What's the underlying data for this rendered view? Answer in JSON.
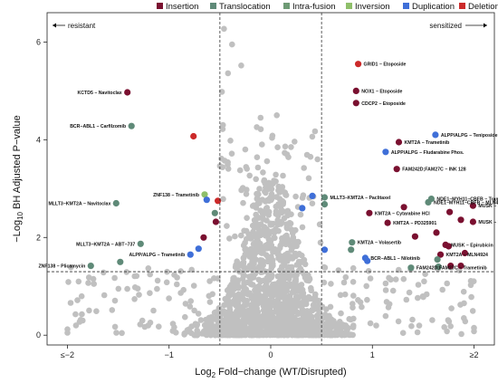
{
  "chart_data": {
    "type": "scatter",
    "x_label_prefix": "Log",
    "x_label_sub": "2",
    "x_label_rest": " Fold−change (WT/Disrupted)",
    "y_label_prefix": "−Log",
    "y_label_sub": "10",
    "y_label_rest": " BH Adjusted P−value",
    "xlim": [
      -2.2,
      2.2
    ],
    "ylim": [
      -0.2,
      6.6
    ],
    "x_ticks": [
      {
        "value": -2,
        "label": "≤−2"
      },
      {
        "value": -1,
        "label": "−1"
      },
      {
        "value": 0,
        "label": "0"
      },
      {
        "value": 1,
        "label": "1"
      },
      {
        "value": 2,
        "label": "≥2"
      }
    ],
    "y_ticks": [
      {
        "value": 0,
        "label": "0"
      },
      {
        "value": 2,
        "label": "2"
      },
      {
        "value": 4,
        "label": "4"
      },
      {
        "value": 6,
        "label": "6"
      }
    ],
    "thresholds": {
      "x": [
        -0.5,
        0.5
      ],
      "y": 1.3
    },
    "direction_labels": {
      "left": "resistant",
      "right": "sensitized"
    },
    "legend": [
      {
        "name": "Insertion",
        "color": "#7a1030"
      },
      {
        "name": "Translocation",
        "color": "#5f8a78"
      },
      {
        "name": "Intra-fusion",
        "color": "#6e9a74"
      },
      {
        "name": "Inversion",
        "color": "#8fbf6a"
      },
      {
        "name": "Duplication",
        "color": "#3f6fd8"
      },
      {
        "name": "Deletion",
        "color": "#cc2a2a"
      }
    ],
    "background_color": "#c0c0c0",
    "highlighted": [
      {
        "x": 0.86,
        "y": 5.55,
        "category": "Deletion",
        "label": "GRID1 − Etoposide"
      },
      {
        "x": 0.84,
        "y": 5.0,
        "category": "Insertion",
        "label": "NOX1 − Etoposide"
      },
      {
        "x": 0.84,
        "y": 4.75,
        "category": "Insertion",
        "label": "CDCP2 − Etoposide"
      },
      {
        "x": -1.41,
        "y": 4.97,
        "category": "Insertion",
        "label": "KCTD5 − Navitoclax"
      },
      {
        "x": -1.37,
        "y": 4.28,
        "category": "Translocation",
        "label": "BCR−ABL1 − Carfilzomib"
      },
      {
        "x": -0.76,
        "y": 4.07,
        "category": "Deletion",
        "label": ""
      },
      {
        "x": 1.26,
        "y": 3.95,
        "category": "Insertion",
        "label": "KMT2A − Trametinib"
      },
      {
        "x": 1.62,
        "y": 4.1,
        "category": "Duplication",
        "label": "ALPP/ALPG − Teniposide"
      },
      {
        "x": 1.13,
        "y": 3.75,
        "category": "Duplication",
        "label": "ALPP/ALPG − Fludarabine Phos."
      },
      {
        "x": 1.24,
        "y": 3.4,
        "category": "Insertion",
        "label": "FAM242D;FAM27C − INK 128"
      },
      {
        "x": 1.58,
        "y": 2.79,
        "category": "Translocation",
        "label": "NDE1−MYH11−CBFB − Trametinib"
      },
      {
        "x": 1.55,
        "y": 2.72,
        "category": "Translocation",
        "label": "NDE1−MYH11−CBFB − MLN4924"
      },
      {
        "x": 0.97,
        "y": 2.5,
        "category": "Insertion",
        "label": "KMT2A − Cytarabine HCl"
      },
      {
        "x": 1.99,
        "y": 2.65,
        "category": "Insertion",
        "label": "MUSK − Idarubicin"
      },
      {
        "x": 1.31,
        "y": 2.62,
        "category": "Insertion",
        "label": ""
      },
      {
        "x": 1.76,
        "y": 2.52,
        "category": "Insertion",
        "label": ""
      },
      {
        "x": 1.15,
        "y": 2.3,
        "category": "Insertion",
        "label": "KMT2A − PD325901"
      },
      {
        "x": 1.87,
        "y": 2.36,
        "category": "Insertion",
        "label": ""
      },
      {
        "x": 1.99,
        "y": 2.32,
        "category": "Insertion",
        "label": "MUSK − Daunorubicin"
      },
      {
        "x": -1.52,
        "y": 2.7,
        "category": "Translocation",
        "label": "MLLT3−KMT2A − Navitoclax"
      },
      {
        "x": -0.65,
        "y": 2.88,
        "category": "Inversion",
        "label": "ZNF138 − Trametinib"
      },
      {
        "x": -0.63,
        "y": 2.77,
        "category": "Duplication",
        "label": ""
      },
      {
        "x": -0.52,
        "y": 2.75,
        "category": "Deletion",
        "label": ""
      },
      {
        "x": -0.55,
        "y": 2.5,
        "category": "Translocation",
        "label": ""
      },
      {
        "x": -0.54,
        "y": 2.32,
        "category": "Insertion",
        "label": ""
      },
      {
        "x": 0.31,
        "y": 2.6,
        "category": "Duplication",
        "label": ""
      },
      {
        "x": 0.41,
        "y": 2.85,
        "category": "Duplication",
        "label": ""
      },
      {
        "x": 0.53,
        "y": 2.82,
        "category": "Translocation",
        "label": "MLLT3−KMT2A − Paclitaxel"
      },
      {
        "x": 0.53,
        "y": 2.68,
        "category": "Translocation",
        "label": ""
      },
      {
        "x": -0.66,
        "y": 2.0,
        "category": "Insertion",
        "label": ""
      },
      {
        "x": -0.71,
        "y": 1.77,
        "category": "Duplication",
        "label": ""
      },
      {
        "x": -0.79,
        "y": 1.65,
        "category": "Duplication",
        "label": "ALPP/ALPG − Trametinib"
      },
      {
        "x": -1.28,
        "y": 1.87,
        "category": "Translocation",
        "label": "MLLT3−KMT2A − ABT−737"
      },
      {
        "x": -1.48,
        "y": 1.5,
        "category": "Translocation",
        "label": ""
      },
      {
        "x": -1.77,
        "y": 1.42,
        "category": "Translocation",
        "label": "ZNF138 − Plicamycin"
      },
      {
        "x": 0.53,
        "y": 1.75,
        "category": "Duplication",
        "label": ""
      },
      {
        "x": 0.8,
        "y": 1.9,
        "category": "Translocation",
        "label": "KMT2A − Volasertib"
      },
      {
        "x": 0.79,
        "y": 1.75,
        "category": "Translocation",
        "label": ""
      },
      {
        "x": 0.93,
        "y": 1.58,
        "category": "Duplication",
        "label": "BCR−ABL1 − Nilotinib"
      },
      {
        "x": 0.95,
        "y": 1.52,
        "category": "Duplication",
        "label": ""
      },
      {
        "x": 1.42,
        "y": 2.02,
        "category": "Insertion",
        "label": ""
      },
      {
        "x": 1.63,
        "y": 2.1,
        "category": "Insertion",
        "label": ""
      },
      {
        "x": 1.72,
        "y": 1.85,
        "category": "Insertion",
        "label": "MUSK − Epirubicin"
      },
      {
        "x": 1.75,
        "y": 1.82,
        "category": "Insertion",
        "label": ""
      },
      {
        "x": 1.67,
        "y": 1.65,
        "category": "Insertion",
        "label": "KMT2A − MLN4924"
      },
      {
        "x": 1.64,
        "y": 1.55,
        "category": "Translocation",
        "label": ""
      },
      {
        "x": 1.77,
        "y": 1.42,
        "category": "Insertion",
        "label": ""
      },
      {
        "x": 1.65,
        "y": 1.4,
        "category": "Translocation",
        "label": ""
      },
      {
        "x": 1.87,
        "y": 1.42,
        "category": "Insertion",
        "label": ""
      },
      {
        "x": 1.91,
        "y": 1.68,
        "category": "Insertion",
        "label": ""
      },
      {
        "x": 1.38,
        "y": 1.38,
        "category": "Translocation",
        "label": "FAM242D;FAM27C − Trametinib"
      }
    ]
  }
}
